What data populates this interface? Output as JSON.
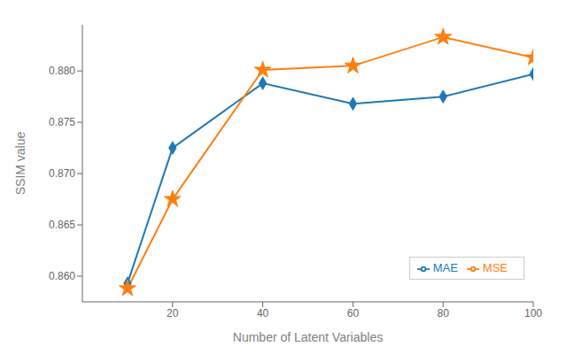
{
  "chart_data": {
    "type": "line",
    "x": [
      10,
      20,
      40,
      60,
      80,
      100
    ],
    "series": [
      {
        "name": "MAE",
        "color": "#1f77b4",
        "marker": "diamond",
        "values": [
          0.8593,
          0.8725,
          0.8788,
          0.8768,
          0.8775,
          0.8797
        ]
      },
      {
        "name": "MSE",
        "color": "#ff7f0e",
        "marker": "star",
        "values": [
          0.8588,
          0.8675,
          0.8801,
          0.8805,
          0.8833,
          0.8813
        ]
      }
    ],
    "xlabel": "Number of Latent Variables",
    "ylabel": "SSIM value",
    "xlim": [
      0,
      100
    ],
    "xticks": [
      20,
      40,
      60,
      80,
      100
    ],
    "ylim": [
      0.8575,
      0.8845
    ],
    "yticks": [
      {
        "value": 0.86,
        "label": "0.860"
      },
      {
        "value": 0.865,
        "label": "0.865"
      },
      {
        "value": 0.87,
        "label": "0.870"
      },
      {
        "value": 0.875,
        "label": "0.875"
      },
      {
        "value": 0.88,
        "label": "0.880"
      }
    ],
    "grid": false,
    "legend": "lower right"
  }
}
